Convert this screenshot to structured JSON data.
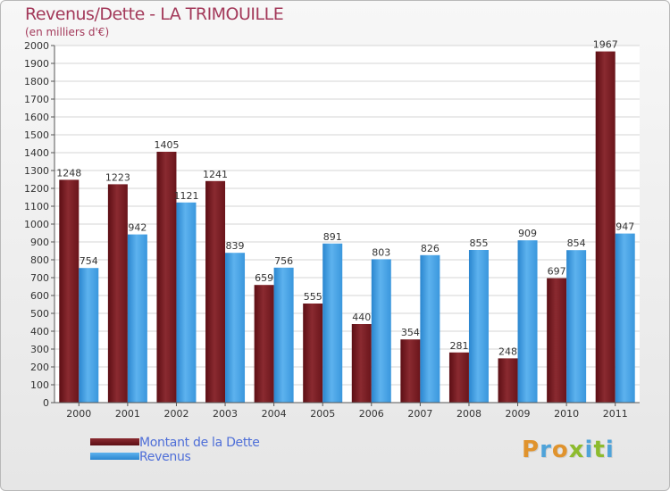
{
  "chart_data": {
    "type": "bar",
    "title": "Revenus/Dette - LA TRIMOUILLE",
    "subtitle": "(en milliers d'€)",
    "categories": [
      "2000",
      "2001",
      "2002",
      "2003",
      "2004",
      "2005",
      "2006",
      "2007",
      "2008",
      "2009",
      "2010",
      "2011"
    ],
    "series": [
      {
        "name": "Montant de la Dette",
        "color": "#7a1c22",
        "values": [
          1248,
          1223,
          1405,
          1241,
          659,
          555,
          440,
          354,
          281,
          248,
          697,
          1967
        ]
      },
      {
        "name": "Revenus",
        "color": "#3d9be0",
        "values": [
          754,
          942,
          1121,
          839,
          756,
          891,
          803,
          826,
          855,
          909,
          854,
          947
        ]
      }
    ],
    "ylim": [
      0,
      2000
    ],
    "yticks": [
      0,
      100,
      200,
      300,
      400,
      500,
      600,
      700,
      800,
      900,
      1000,
      1100,
      1200,
      1300,
      1400,
      1500,
      1600,
      1700,
      1800,
      1900,
      2000
    ],
    "grid": true,
    "legend_position": "bottom-left",
    "xlabel": "",
    "ylabel": ""
  },
  "logo": {
    "letters": [
      {
        "char": "P",
        "color": "#e0932d"
      },
      {
        "char": "r",
        "color": "#4fa3d9"
      },
      {
        "char": "o",
        "color": "#e0932d"
      },
      {
        "char": "x",
        "color": "#8dbb2e"
      },
      {
        "char": "i",
        "color": "#4fa3d9"
      },
      {
        "char": "t",
        "color": "#8dbb2e"
      },
      {
        "char": "i",
        "color": "#4fa3d9"
      }
    ]
  }
}
